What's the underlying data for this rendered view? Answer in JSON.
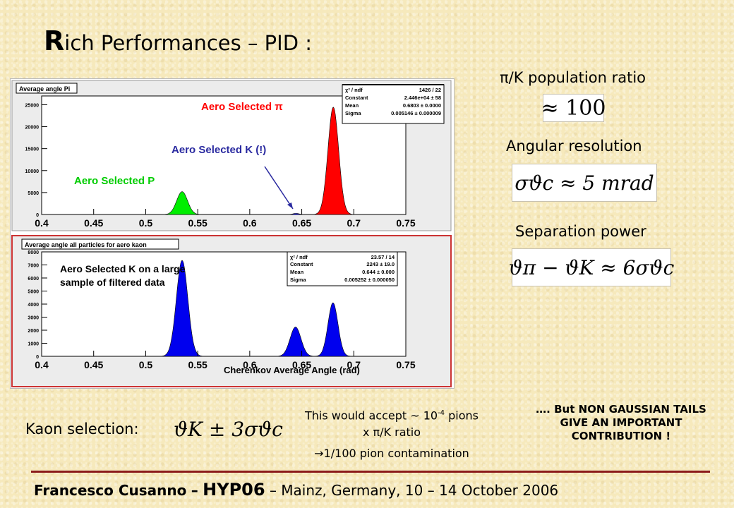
{
  "title": {
    "first_letter": "R",
    "rest": "ich Performances – PID :"
  },
  "population": {
    "label": "π/K population ratio",
    "value": "≈ 100"
  },
  "angular": {
    "label": "Angular resolution",
    "formula": "σϑc ≈ 5 mrad"
  },
  "separation": {
    "label": "Separation power",
    "formula": "ϑπ − ϑK ≈ 6σϑc"
  },
  "kaon": {
    "label": "Kaon selection:",
    "formula": "ϑK ± 3σϑc"
  },
  "accept": {
    "line1_pre": "This would accept ~ 10",
    "line1_exp": "-4",
    "line1_post": " pions",
    "line2": "x π/K ratio",
    "line3": "→1/100 pion contamination"
  },
  "tails": {
    "text": "…. But NON GAUSSIAN TAILS GIVE AN IMPORTANT CONTRIBUTION !"
  },
  "footer": {
    "author": "Francesco Cusanno",
    "dash": "–",
    "conf": "HYP06",
    "rest": "– Mainz, Germany, 10 – 14 October 2006"
  },
  "colors": {
    "accent_rule": "#8b1a1a",
    "pion": "#ff0000",
    "kaon": "#0000ff",
    "proton": "#00dd00"
  },
  "chart_data": [
    {
      "type": "area",
      "title": "Average angle Pi",
      "xlim": [
        0.4,
        0.75
      ],
      "ylim": [
        0,
        27000
      ],
      "xticks": [
        "0.4",
        "0.45",
        "0.5",
        "0.55",
        "0.6",
        "0.65",
        "0.7",
        "0.75"
      ],
      "yticks": [
        "0",
        "5000",
        "10000",
        "15000",
        "20000",
        "25000"
      ],
      "stats": {
        "chi2_label": "χ² / ndf",
        "chi2": "1426 / 22",
        "constant": "2.446e+04 ± 58",
        "mean": "0.6803 ± 0.0000",
        "sigma": "0.005146 ± 0.000009"
      },
      "annotations": {
        "pion": "Aero Selected π",
        "kaon": "Aero Selected K (!)",
        "proton": "Aero Selected P"
      },
      "peaks": [
        {
          "name": "P",
          "mean": 0.535,
          "sigma": 0.0052,
          "height": 5200,
          "color": "#00ee00"
        },
        {
          "name": "K",
          "mean": 0.6445,
          "sigma": 0.003,
          "height": 250,
          "color": "#0000ff"
        },
        {
          "name": "Pi",
          "mean": 0.6803,
          "sigma": 0.005146,
          "height": 24460,
          "color": "#ff0000"
        }
      ]
    },
    {
      "type": "area",
      "title": "Average angle all particles for aero kaon",
      "xlabel": "Cherenkov Average Angle (rad)",
      "xlim": [
        0.4,
        0.75
      ],
      "ylim": [
        0,
        8000
      ],
      "xticks": [
        "0.4",
        "0.45",
        "0.5",
        "0.55",
        "0.6",
        "0.65",
        "0.7",
        "0.75"
      ],
      "yticks": [
        "0",
        "1000",
        "2000",
        "3000",
        "4000",
        "5000",
        "6000",
        "7000",
        "8000"
      ],
      "stats": {
        "chi2_label": "χ² / ndf",
        "chi2": "23.57 / 14",
        "constant": "2243 ± 19.0",
        "mean": "0.644 ± 0.000",
        "sigma": "0.005252 ± 0.000050"
      },
      "annotation": "Aero Selected K on a large sample of filtered data",
      "peaks": [
        {
          "name": "P",
          "mean": 0.535,
          "sigma": 0.0055,
          "height": 7350,
          "color": "#0000ee"
        },
        {
          "name": "K",
          "mean": 0.644,
          "sigma": 0.005252,
          "height": 2243,
          "color": "#0000ee"
        },
        {
          "name": "Pi",
          "mean": 0.68,
          "sigma": 0.0048,
          "height": 4100,
          "color": "#0000ee"
        }
      ]
    }
  ]
}
